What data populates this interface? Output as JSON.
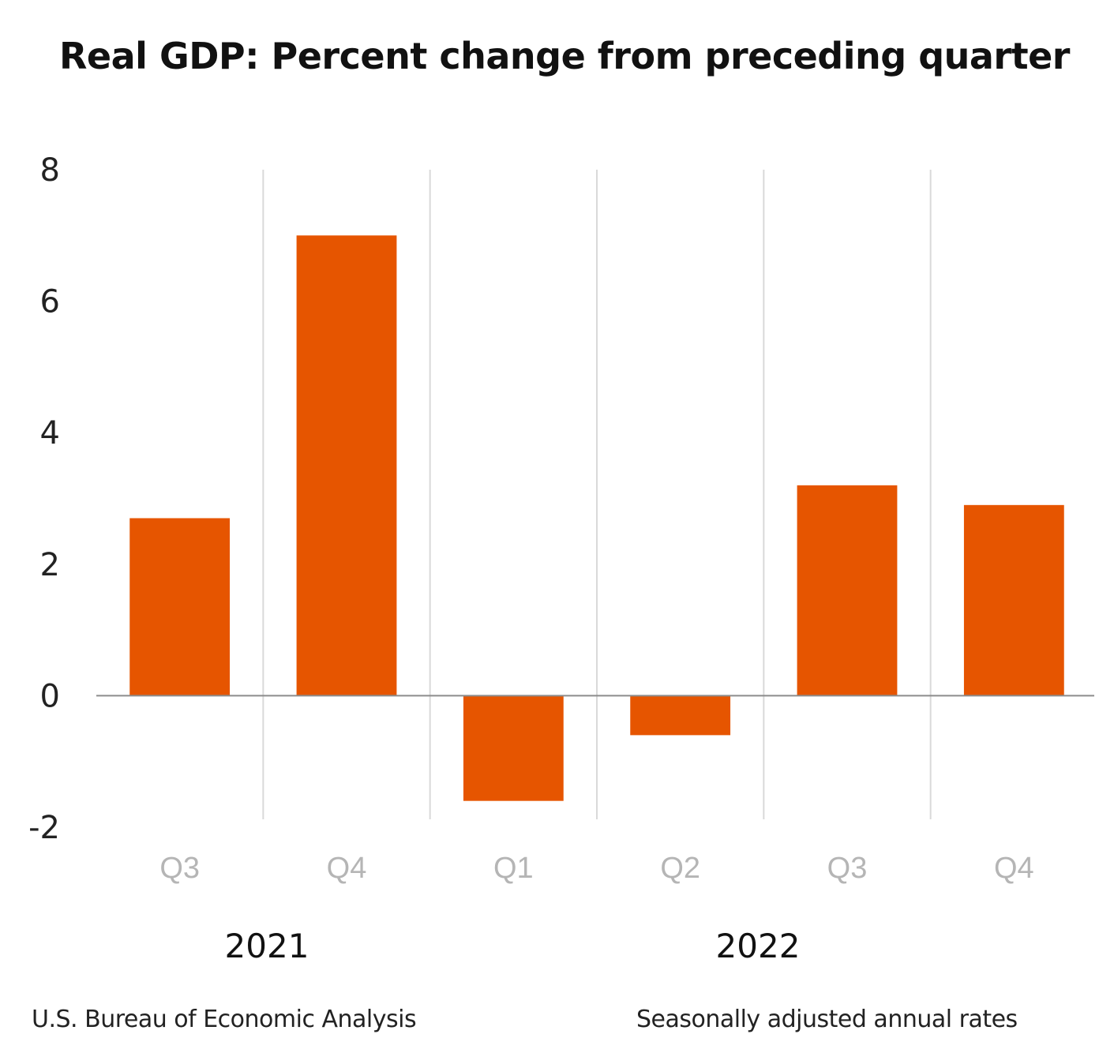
{
  "title": "Real GDP:  Percent change from preceding quarter",
  "footer": {
    "source": "U.S. Bureau of Economic Analysis",
    "note": "Seasonally adjusted annual rates"
  },
  "chart_data": {
    "type": "bar",
    "title": "Real GDP:  Percent change from preceding quarter",
    "xlabel": "",
    "ylabel": "",
    "categories": [
      "Q3",
      "Q4",
      "Q1",
      "Q2",
      "Q3",
      "Q4"
    ],
    "groups": [
      {
        "label": "2021",
        "categories": [
          "Q3",
          "Q4"
        ]
      },
      {
        "label": "2022",
        "categories": [
          "Q1",
          "Q2",
          "Q3",
          "Q4"
        ]
      }
    ],
    "values": [
      2.7,
      7.0,
      -1.6,
      -0.6,
      3.2,
      2.9
    ],
    "ylim": [
      -2,
      8
    ],
    "yticks": [
      "-2",
      "0",
      "2",
      "4",
      "6",
      "8"
    ],
    "bar_color": "#E65500",
    "grid": false,
    "legend": "none"
  }
}
